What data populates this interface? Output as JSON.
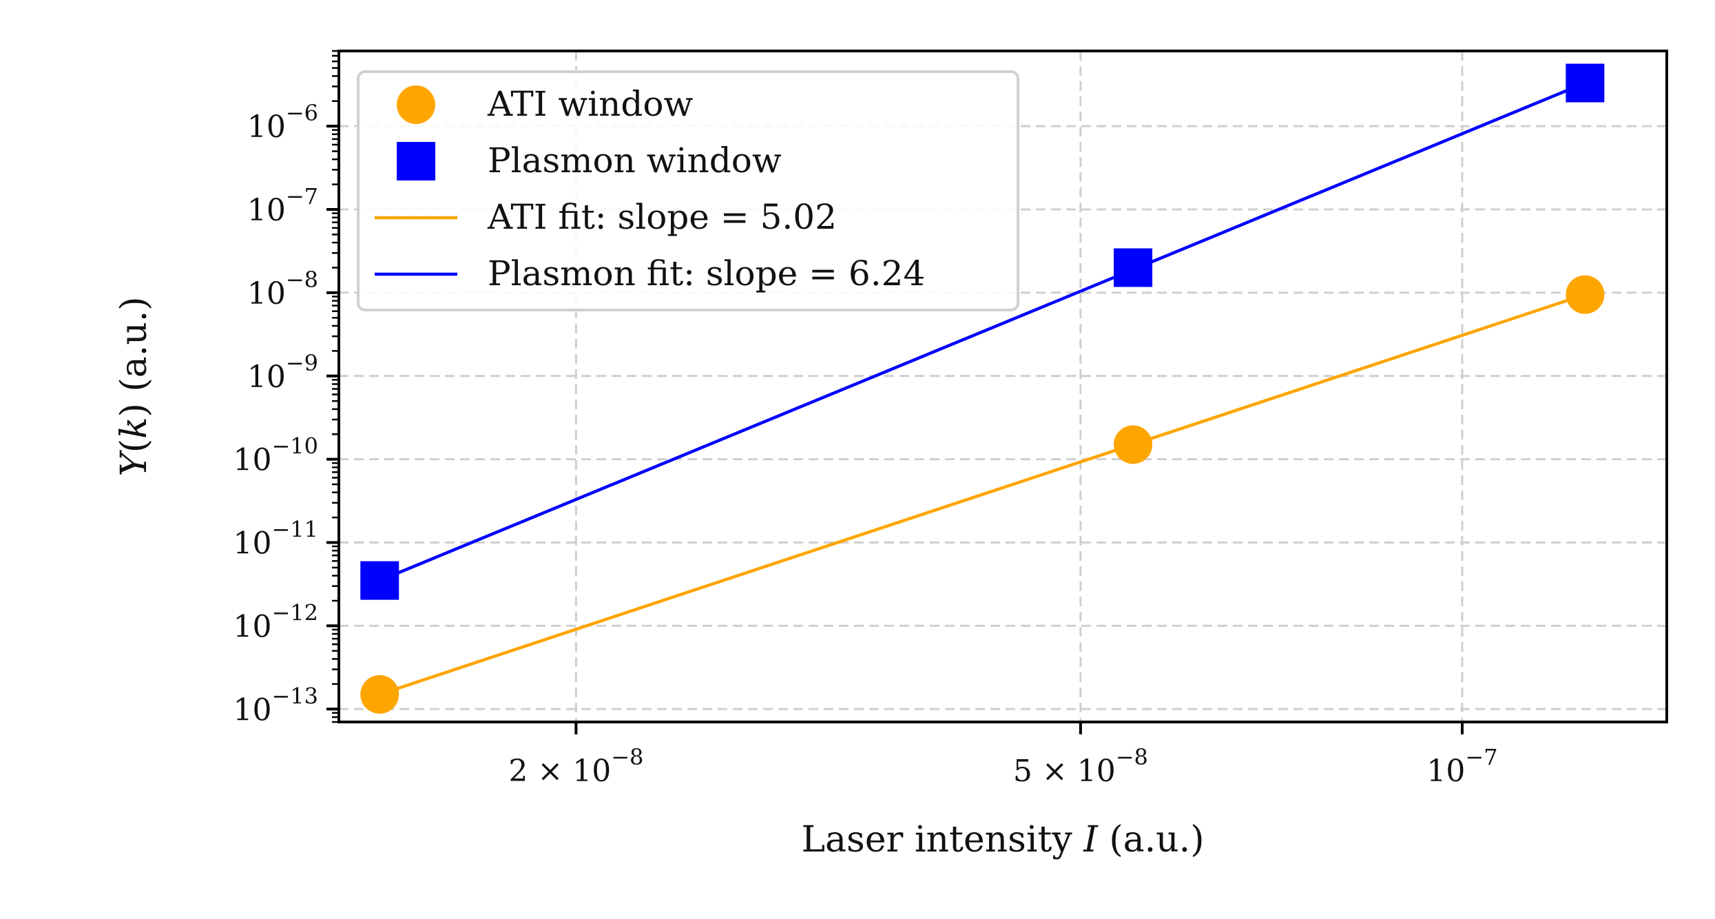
{
  "chart_data": {
    "type": "scatter",
    "xscale": "log",
    "yscale": "log",
    "xlabel": "Laser intensity I (a.u.)",
    "xlabel_parts": {
      "prefix": "Laser intensity ",
      "var": "I",
      "suffix": " (a.u.)"
    },
    "ylabel": "Y(k) (a.u.)",
    "ylabel_parts": {
      "y": "Y",
      "k": "k",
      "suffix": " (a.u.)"
    },
    "xlim": [
      1.3e-08,
      1.45e-07
    ],
    "ylim": [
      7e-14,
      8e-06
    ],
    "x_ticks": [
      {
        "value": 2e-08,
        "mant": "2 × 10",
        "exp": "−8"
      },
      {
        "value": 5e-08,
        "mant": "5 × 10",
        "exp": "−8"
      },
      {
        "value": 1e-07,
        "mant": "10",
        "exp": "−7"
      }
    ],
    "y_ticks": [
      {
        "value": 1e-06,
        "mant": "10",
        "exp": "−6"
      },
      {
        "value": 1e-07,
        "mant": "10",
        "exp": "−7"
      },
      {
        "value": 1e-08,
        "mant": "10",
        "exp": "−8"
      },
      {
        "value": 1e-09,
        "mant": "10",
        "exp": "−9"
      },
      {
        "value": 1e-10,
        "mant": "10",
        "exp": "−10"
      },
      {
        "value": 1e-11,
        "mant": "10",
        "exp": "−11"
      },
      {
        "value": 1e-12,
        "mant": "10",
        "exp": "−12"
      },
      {
        "value": 1e-13,
        "mant": "10",
        "exp": "−13"
      }
    ],
    "grid": true,
    "legend_position": "top-left",
    "series": [
      {
        "name": "ATI window",
        "kind": "scatter",
        "marker": "circle",
        "color": "#FFA500",
        "x": [
          1.4e-08,
          5.5e-08,
          1.25e-07
        ],
        "y": [
          1.5e-13,
          1.5e-10,
          9.5e-09
        ]
      },
      {
        "name": "Plasmon window",
        "kind": "scatter",
        "marker": "square",
        "color": "#0000FF",
        "x": [
          1.4e-08,
          5.5e-08,
          1.25e-07
        ],
        "y": [
          3.5e-12,
          2e-08,
          3.3e-06
        ]
      },
      {
        "name": "ATI fit: slope = 5.02",
        "kind": "line",
        "color": "#FFA500",
        "slope": 5.02,
        "x": [
          1.4e-08,
          1.25e-07
        ],
        "y": [
          1.5e-13,
          9.5e-09
        ]
      },
      {
        "name": "Plasmon fit: slope = 6.24",
        "kind": "line",
        "color": "#0000FF",
        "slope": 6.24,
        "x": [
          1.4e-08,
          1.25e-07
        ],
        "y": [
          3.5e-12,
          3.3e-06
        ]
      }
    ]
  }
}
